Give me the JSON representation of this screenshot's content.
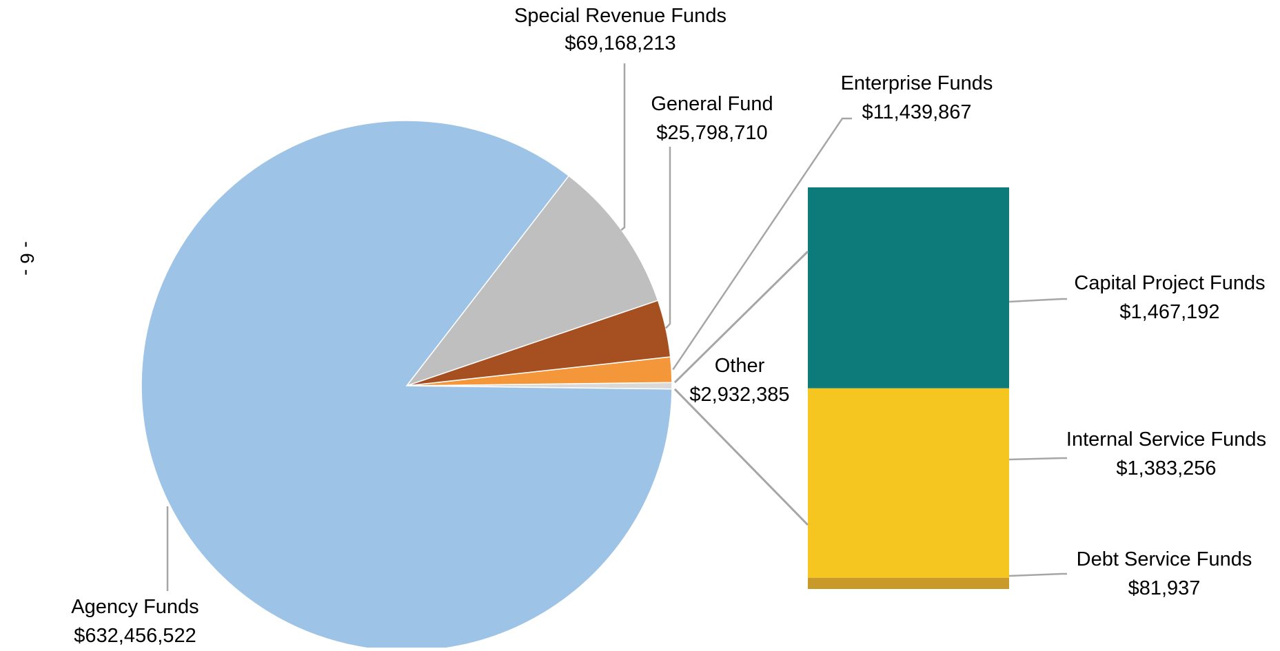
{
  "page_marker": "- 6 -",
  "chart_data": {
    "type": "bar-of-pie",
    "pie": {
      "slices": [
        {
          "name": "Agency Funds",
          "value": 632456522,
          "value_label": "$632,456,522",
          "color": "#9DC3E6"
        },
        {
          "name": "Special Revenue  Funds",
          "value": 69168213,
          "value_label": "$69,168,213",
          "color": "#BFBFBF"
        },
        {
          "name": "General  Fund",
          "value": 25798710,
          "value_label": "$25,798,710",
          "color": "#A65022"
        },
        {
          "name": "Enterprise Funds",
          "value": 11439867,
          "value_label": "$11,439,867",
          "color": "#F4963A"
        },
        {
          "name": "Other",
          "value": 2932385,
          "value_label": "$2,932,385",
          "color": "#D9D9D9"
        }
      ]
    },
    "bar": {
      "segments": [
        {
          "name": "Capital Project Funds",
          "value": 1467192,
          "value_label": "$1,467,192",
          "color": "#0C7B7A"
        },
        {
          "name": "Internal Service Funds",
          "value": 1383256,
          "value_label": "$1,383,256",
          "color": "#F5C520"
        },
        {
          "name": "Debt Service  Funds",
          "value": 81937,
          "value_label": "$81,937",
          "color": "#C9992A"
        }
      ]
    },
    "leader_line_color": "#A6A6A6"
  }
}
